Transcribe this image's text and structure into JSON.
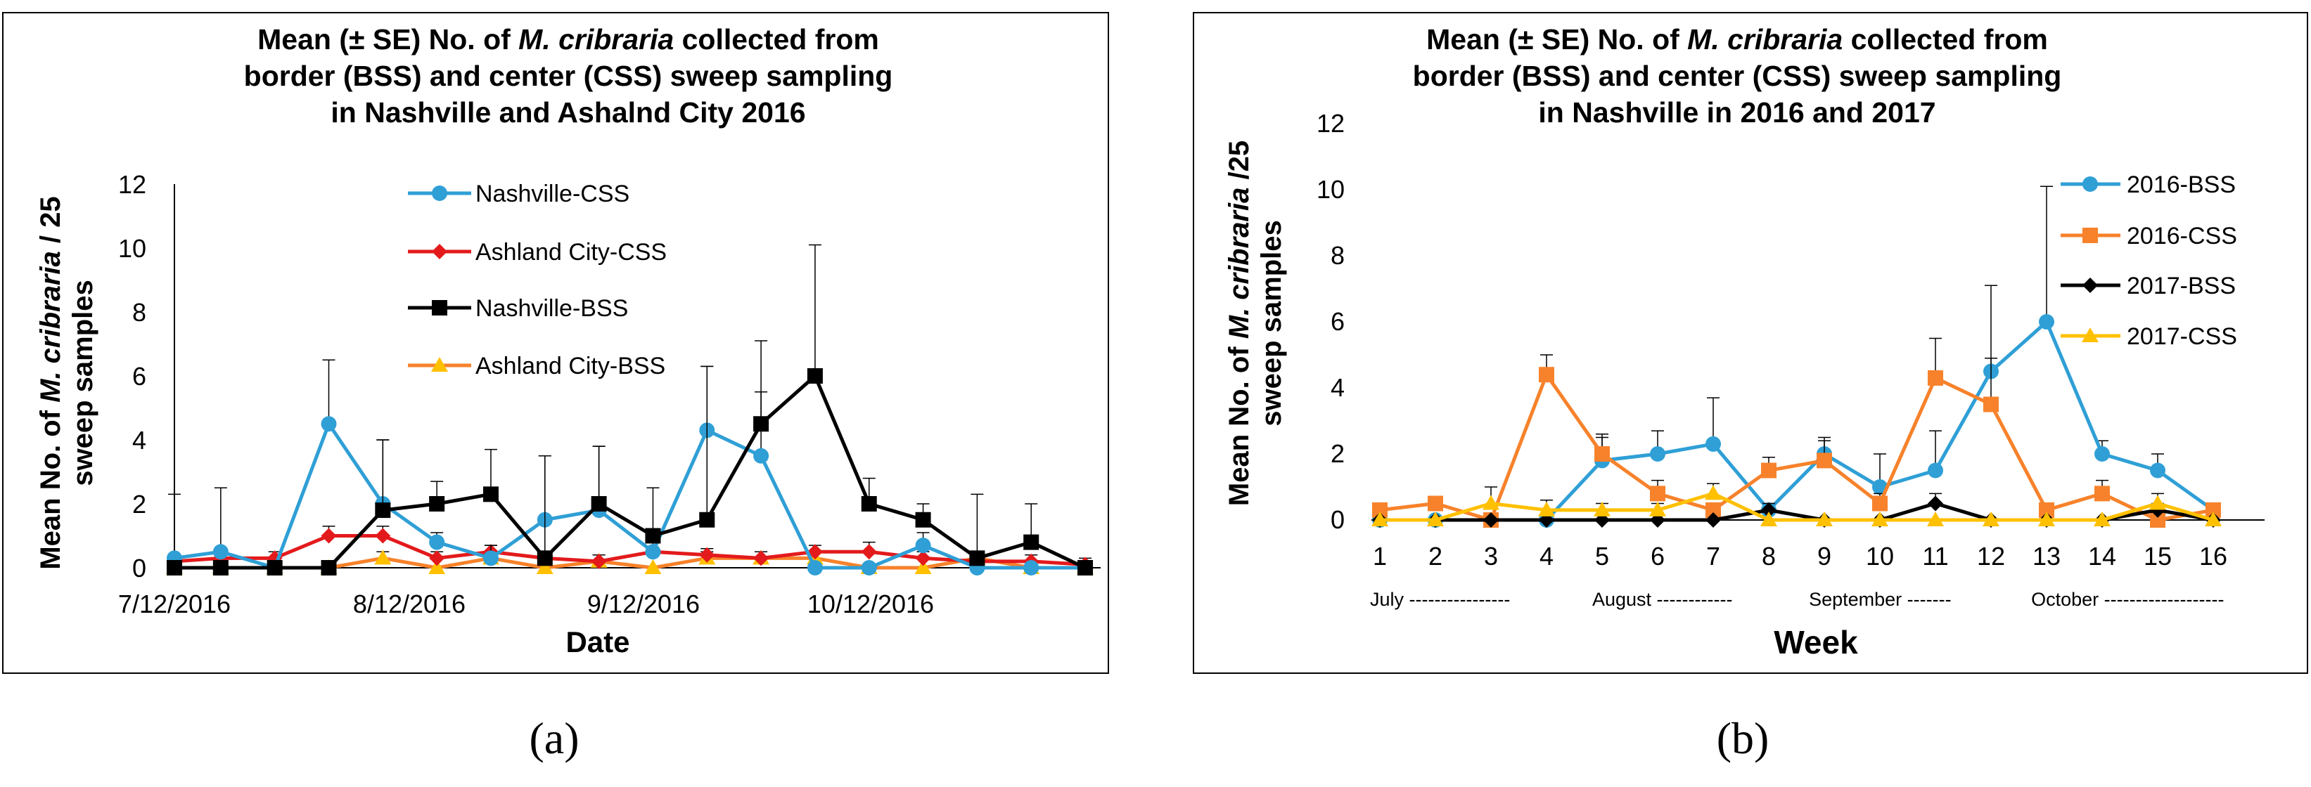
{
  "colors": {
    "blue": "#2f9fd6",
    "red": "#e31a1c",
    "black": "#000000",
    "orange": "#f7822b",
    "yellow": "#ffc000"
  },
  "chart_data": [
    {
      "id": "a",
      "type": "line",
      "panel_label": "(a)",
      "title_lines": [
        {
          "pre": "Mean (± SE) No. of ",
          "italic": "M. cribraria",
          "post": " collected from"
        },
        {
          "pre": "border (BSS) and center (CSS) sweep sampling",
          "italic": "",
          "post": ""
        },
        {
          "pre": "in Nashville and Ashalnd City 2016",
          "italic": "",
          "post": ""
        }
      ],
      "xlabel": "Date",
      "ylabel_line1": {
        "pre": "Mean No. of ",
        "italic": "M. cribraria",
        "post": " / 25"
      },
      "ylabel_line2": "sweep samples",
      "ylim": [
        0,
        12
      ],
      "yticks": [
        "0",
        "2",
        "4",
        "6",
        "8",
        "10",
        "12"
      ],
      "xticks": [
        {
          "label": "7/12/2016",
          "day": 0
        },
        {
          "label": "8/12/2016",
          "day": 31
        },
        {
          "label": "9/12/2016",
          "day": 62
        },
        {
          "label": "10/12/2016",
          "day": 92
        }
      ],
      "xlim_days": [
        0,
        120
      ],
      "legend_position": "upper-center",
      "series": [
        {
          "name": "Nashville-CSS",
          "color": "blue",
          "marker": "circle",
          "x": [
            0,
            6,
            13,
            20,
            27,
            34,
            41,
            48,
            55,
            62,
            69,
            76,
            83,
            90,
            97,
            104,
            111,
            118
          ],
          "y": [
            0.3,
            0.5,
            0,
            4.5,
            2.0,
            0.8,
            0.3,
            1.5,
            1.8,
            0.5,
            4.3,
            3.5,
            0,
            0,
            0.7,
            0,
            0,
            0
          ],
          "err": [
            2.0,
            2.0,
            0,
            2.0,
            2.0,
            0.3,
            0.4,
            2.0,
            2.0,
            0.4,
            2.0,
            2.0,
            0,
            0,
            0.4,
            0,
            0,
            0
          ]
        },
        {
          "name": "Ashland City-CSS",
          "color": "red",
          "marker": "diamond",
          "x": [
            0,
            6,
            13,
            20,
            27,
            34,
            41,
            48,
            55,
            62,
            69,
            76,
            83,
            90,
            97,
            104,
            111,
            118
          ],
          "y": [
            0.2,
            0.3,
            0.3,
            1.0,
            1.0,
            0.3,
            0.5,
            0.3,
            0.2,
            0.5,
            0.4,
            0.3,
            0.5,
            0.5,
            0.3,
            0.2,
            0.2,
            0.1
          ],
          "err": [
            0.2,
            0.2,
            0.2,
            0.3,
            0.3,
            0.2,
            0.2,
            0.2,
            0.2,
            0.3,
            0.2,
            0.2,
            0.2,
            0.3,
            0.2,
            0.2,
            0.2,
            0.2
          ]
        },
        {
          "name": "Nashville-BSS",
          "color": "black",
          "marker": "square",
          "x": [
            0,
            6,
            13,
            20,
            27,
            34,
            41,
            48,
            55,
            62,
            69,
            76,
            83,
            90,
            97,
            104,
            111,
            118
          ],
          "y": [
            0,
            0,
            0,
            0,
            1.8,
            2.0,
            2.3,
            0.3,
            2.0,
            1.0,
            1.5,
            4.5,
            6.0,
            2.0,
            1.5,
            0.3,
            0.8,
            0
          ],
          "err": [
            0,
            0,
            0,
            0,
            2.2,
            0.7,
            1.4,
            3.2,
            1.8,
            1.5,
            4.8,
            2.6,
            4.1,
            0.8,
            0.5,
            2.0,
            1.2,
            0
          ]
        },
        {
          "name": "Ashland City-BSS",
          "color": "orange",
          "marker": "triangle",
          "x": [
            0,
            6,
            13,
            20,
            27,
            34,
            41,
            48,
            55,
            62,
            69,
            76,
            83,
            90,
            97,
            104,
            111,
            118
          ],
          "y": [
            0,
            0,
            0,
            0,
            0.3,
            0,
            0.3,
            0,
            0.2,
            0,
            0.3,
            0.3,
            0.3,
            0,
            0,
            0.3,
            0,
            0
          ],
          "err": [
            0,
            0,
            0,
            0,
            0.2,
            0,
            0.2,
            0,
            0.2,
            0,
            0.2,
            0.2,
            0.2,
            0,
            0,
            0.2,
            0,
            0
          ]
        }
      ]
    },
    {
      "id": "b",
      "type": "line",
      "panel_label": "(b)",
      "title_lines": [
        {
          "pre": "Mean (± SE) No. of ",
          "italic": "M. cribraria",
          "post": " collected from"
        },
        {
          "pre": "border (BSS) and center (CSS) sweep sampling",
          "italic": "",
          "post": ""
        },
        {
          "pre": "in Nashville in 2016 and 2017",
          "italic": "",
          "post": ""
        }
      ],
      "xlabel": "Week",
      "ylabel_line1": {
        "pre": "Mean No. of ",
        "italic": "M. cribraria",
        "post": " /25"
      },
      "ylabel_line2": "sweep samples",
      "ylim": [
        0,
        12
      ],
      "yticks": [
        "0",
        "2",
        "4",
        "6",
        "8",
        "10",
        "12"
      ],
      "categories": [
        "1",
        "2",
        "3",
        "4",
        "5",
        "6",
        "7",
        "8",
        "9",
        "10",
        "11",
        "12",
        "13",
        "14",
        "15",
        "16"
      ],
      "month_labels": [
        {
          "text": "July ----------------",
          "week": 1
        },
        {
          "text": "August ------------",
          "week": 5
        },
        {
          "text": "September -------",
          "week": 8.9
        },
        {
          "text": "October -------------------",
          "week": 12.9
        }
      ],
      "legend_position": "upper-right",
      "series": [
        {
          "name": "2016-BSS",
          "color": "blue",
          "marker": "circle",
          "y": [
            0,
            0,
            0,
            0,
            1.8,
            2.0,
            2.3,
            0.3,
            2.0,
            1.0,
            1.5,
            4.5,
            6.0,
            2.0,
            1.5,
            0.3
          ],
          "err": [
            0,
            0,
            0,
            0,
            0.7,
            0.7,
            1.4,
            0.2,
            0.5,
            1.0,
            1.2,
            2.6,
            4.1,
            0.4,
            0.5,
            0.2
          ]
        },
        {
          "name": "2016-CSS",
          "color": "orange",
          "marker": "square",
          "y": [
            0.3,
            0.5,
            0,
            4.4,
            2.0,
            0.8,
            0.3,
            1.5,
            1.8,
            0.5,
            4.3,
            3.5,
            0.3,
            0.8,
            0,
            0.3
          ],
          "err": [
            0.2,
            0.2,
            0,
            0.6,
            0.6,
            0.4,
            0.2,
            0.4,
            0.6,
            0.3,
            1.2,
            1.4,
            0.2,
            0.4,
            0,
            0.2
          ]
        },
        {
          "name": "2017-BSS",
          "color": "black",
          "marker": "diamond",
          "y": [
            0,
            0,
            0,
            0,
            0,
            0,
            0,
            0.3,
            0,
            0,
            0.5,
            0,
            0,
            0,
            0.3,
            0
          ],
          "err": [
            0,
            0,
            0,
            0,
            0,
            0,
            0,
            0.2,
            0,
            0,
            0.3,
            0,
            0,
            0,
            0.2,
            0
          ]
        },
        {
          "name": "2017-CSS",
          "color": "yellow",
          "marker": "triangle",
          "y": [
            0,
            0,
            0.5,
            0.3,
            0.3,
            0.3,
            0.8,
            0,
            0,
            0,
            0,
            0,
            0,
            0,
            0.5,
            0
          ],
          "err": [
            0,
            0,
            0.5,
            0.3,
            0.2,
            0.2,
            0.3,
            0,
            0,
            0,
            0,
            0,
            0,
            0,
            0.3,
            0
          ]
        }
      ]
    }
  ]
}
